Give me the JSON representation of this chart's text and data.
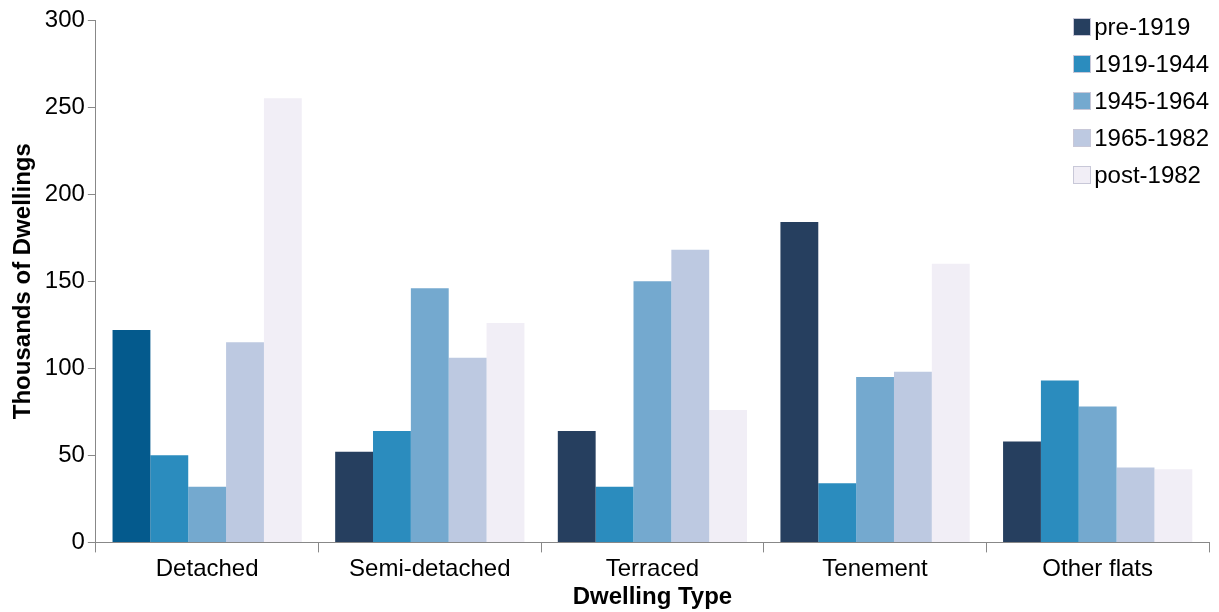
{
  "chart_data": {
    "type": "bar",
    "xlabel": "Dwelling Type",
    "ylabel": "Thousands of Dwellings",
    "categories": [
      "Detached",
      "Semi-detached",
      "Terraced",
      "Tenement",
      "Other flats"
    ],
    "series": [
      {
        "name": "pre-1919",
        "color": "#263f5f",
        "colors": [
          "#045a8d",
          "#263f5f",
          "#263f5f",
          "#263f5f",
          "#263f5f"
        ],
        "values": [
          122,
          52,
          64,
          184,
          58
        ]
      },
      {
        "name": "1919-1944",
        "color": "#2b8cbe",
        "values": [
          50,
          64,
          32,
          34,
          93
        ]
      },
      {
        "name": "1945-1964",
        "color": "#74a9cf",
        "values": [
          32,
          146,
          150,
          95,
          78
        ]
      },
      {
        "name": "1965-1982",
        "color": "#bdc9e1",
        "values": [
          115,
          106,
          168,
          98,
          43
        ]
      },
      {
        "name": "post-1982",
        "color": "#f1eef6",
        "values": [
          255,
          126,
          76,
          160,
          42
        ]
      }
    ],
    "ylim": [
      0,
      300
    ],
    "yticks": [
      0,
      50,
      100,
      150,
      200,
      250,
      300
    ],
    "grid": false,
    "legend": "top right"
  }
}
